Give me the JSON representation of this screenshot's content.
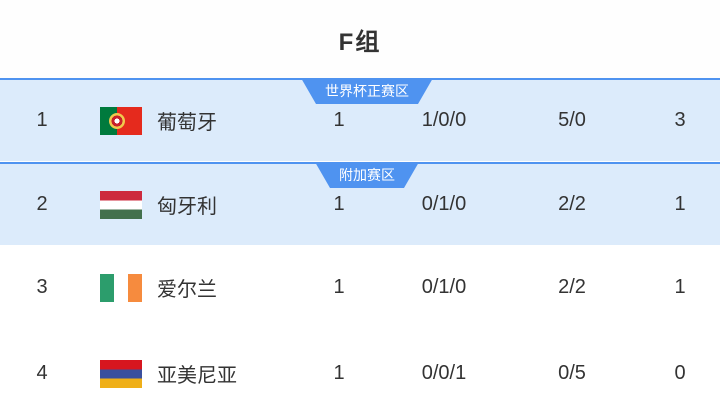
{
  "header": {
    "title": "F组"
  },
  "table": {
    "rows": [
      {
        "rank": "1",
        "flag": "portugal-flag",
        "team": "葡萄牙",
        "played": "1",
        "wdl": "1/0/0",
        "goals": "5/0",
        "points": "3",
        "badge": "世界杯正赛区"
      },
      {
        "rank": "2",
        "flag": "hungary-flag",
        "team": "匈牙利",
        "played": "1",
        "wdl": "0/1/0",
        "goals": "2/2",
        "points": "1",
        "badge": "附加赛区"
      },
      {
        "rank": "3",
        "flag": "ireland-flag",
        "team": "爱尔兰",
        "played": "1",
        "wdl": "0/1/0",
        "goals": "2/2",
        "points": "1"
      },
      {
        "rank": "4",
        "flag": "armenia-flag",
        "team": "亚美尼亚",
        "played": "1",
        "wdl": "0/0/1",
        "goals": "0/5",
        "points": "0"
      }
    ]
  },
  "colors": {
    "accent_blue": "#4f93f0",
    "highlight_row_bg": "#dcebfb",
    "text": "#333333",
    "badge_text": "#ffffff"
  }
}
